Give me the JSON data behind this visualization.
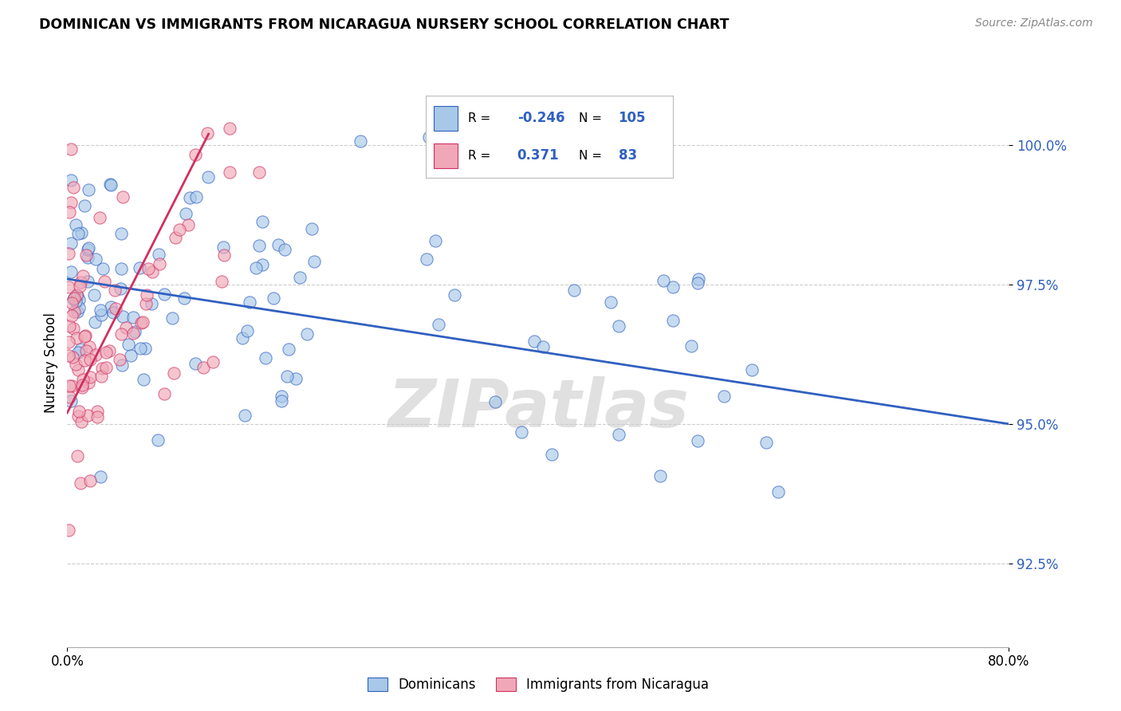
{
  "title": "DOMINICAN VS IMMIGRANTS FROM NICARAGUA NURSERY SCHOOL CORRELATION CHART",
  "source": "Source: ZipAtlas.com",
  "ylabel": "Nursery School",
  "watermark": "ZIPatlas",
  "legend_R1": "-0.246",
  "legend_N1": "105",
  "legend_R2": "0.371",
  "legend_N2": "83",
  "blue_color": "#a8c8e8",
  "pink_color": "#f0a8b8",
  "trendline_blue": "#3060c0",
  "trendline_pink": "#d03060",
  "xmin": 0.0,
  "xmax": 80.0,
  "ymin": 91.0,
  "ymax": 101.2,
  "ytick_positions": [
    92.5,
    95.0,
    97.5,
    100.0
  ],
  "ytick_labels": [
    "92.5%",
    "95.0%",
    "97.5%",
    "100.0%"
  ],
  "blue_trend_x": [
    0.0,
    80.0
  ],
  "blue_trend_y": [
    97.6,
    95.0
  ],
  "pink_trend_x": [
    0.0,
    12.0
  ],
  "pink_trend_y": [
    95.2,
    100.2
  ],
  "label_blue": "Dominicans",
  "label_pink": "Immigrants from Nicaragua"
}
